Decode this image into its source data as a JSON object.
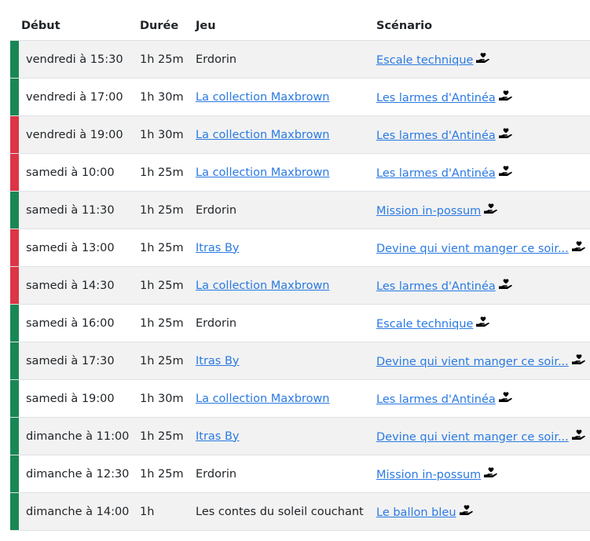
{
  "headers": {
    "start": "Début",
    "duration": "Durée",
    "game": "Jeu",
    "scenario": "Scénario"
  },
  "colors": {
    "ok": "#198754",
    "full": "#dc3545",
    "link": "#2a7ae2"
  },
  "scenario_icon": "hand-holding-heart-icon",
  "rows": [
    {
      "status": "ok",
      "start": "vendredi à 15:30",
      "duration": "1h 25m",
      "game": "Erdorin",
      "game_link": false,
      "scenario": "Escale technique"
    },
    {
      "status": "ok",
      "start": "vendredi à 17:00",
      "duration": "1h 30m",
      "game": "La collection Maxbrown",
      "game_link": true,
      "scenario": "Les larmes d'Antinéa"
    },
    {
      "status": "full",
      "start": "vendredi à 19:00",
      "duration": "1h 30m",
      "game": "La collection Maxbrown",
      "game_link": true,
      "scenario": "Les larmes d'Antinéa"
    },
    {
      "status": "full",
      "start": "samedi à 10:00",
      "duration": "1h 25m",
      "game": "La collection Maxbrown",
      "game_link": true,
      "scenario": "Les larmes d'Antinéa"
    },
    {
      "status": "ok",
      "start": "samedi à 11:30",
      "duration": "1h 25m",
      "game": "Erdorin",
      "game_link": false,
      "scenario": "Mission in-possum"
    },
    {
      "status": "full",
      "start": "samedi à 13:00",
      "duration": "1h 25m",
      "game": "Itras By",
      "game_link": true,
      "scenario": "Devine qui vient manger ce soir..."
    },
    {
      "status": "full",
      "start": "samedi à 14:30",
      "duration": "1h 25m",
      "game": "La collection Maxbrown",
      "game_link": true,
      "scenario": "Les larmes d'Antinéa"
    },
    {
      "status": "ok",
      "start": "samedi à 16:00",
      "duration": "1h 25m",
      "game": "Erdorin",
      "game_link": false,
      "scenario": "Escale technique"
    },
    {
      "status": "ok",
      "start": "samedi à 17:30",
      "duration": "1h 25m",
      "game": "Itras By",
      "game_link": true,
      "scenario": "Devine qui vient manger ce soir..."
    },
    {
      "status": "ok",
      "start": "samedi à 19:00",
      "duration": "1h 30m",
      "game": "La collection Maxbrown",
      "game_link": true,
      "scenario": "Les larmes d'Antinéa"
    },
    {
      "status": "ok",
      "start": "dimanche à 11:00",
      "duration": "1h 25m",
      "game": "Itras By",
      "game_link": true,
      "scenario": "Devine qui vient manger ce soir..."
    },
    {
      "status": "ok",
      "start": "dimanche à 12:30",
      "duration": "1h 25m",
      "game": "Erdorin",
      "game_link": false,
      "scenario": "Mission in-possum"
    },
    {
      "status": "ok",
      "start": "dimanche à 14:00",
      "duration": "1h",
      "game": "Les contes du soleil couchant",
      "game_link": false,
      "scenario": "Le ballon bleu"
    }
  ]
}
